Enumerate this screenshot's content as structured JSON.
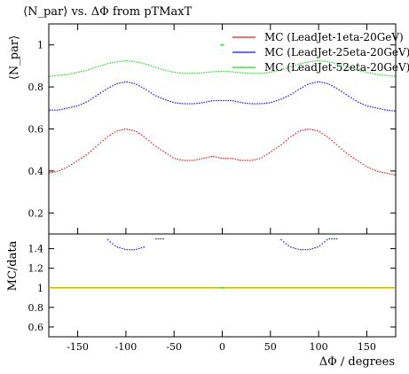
{
  "chart_data": [
    {
      "type": "line",
      "title": "⟨N_par⟩ vs. ΔΦ from pTMaxT",
      "ylabel": "⟨N_par⟩",
      "xlim": [
        -180,
        180
      ],
      "ylim": [
        0.1,
        1.1
      ],
      "yticks": [
        "0.2",
        "0.4",
        "0.6",
        "0.8",
        "1"
      ],
      "legend_position": "top-right",
      "grid": false,
      "step_style": "histogram-steps",
      "series": [
        {
          "name": "MC (LeadJet-1eta-20GeV)",
          "color": "#e0201b",
          "x": [
            -180,
            -170,
            -160,
            -150,
            -140,
            -130,
            -120,
            -110,
            -100,
            -90,
            -80,
            -70,
            -60,
            -50,
            -40,
            -30,
            -20,
            -10,
            0,
            10,
            20,
            30,
            40,
            50,
            60,
            70,
            80,
            90,
            100,
            110,
            120,
            130,
            140,
            150,
            160,
            170,
            180
          ],
          "y": [
            0.39,
            0.4,
            0.42,
            0.45,
            0.48,
            0.52,
            0.56,
            0.59,
            0.6,
            0.59,
            0.56,
            0.52,
            0.49,
            0.46,
            0.45,
            0.45,
            0.46,
            0.47,
            0.46,
            0.46,
            0.45,
            0.45,
            0.46,
            0.49,
            0.52,
            0.56,
            0.59,
            0.6,
            0.59,
            0.56,
            0.52,
            0.48,
            0.45,
            0.42,
            0.4,
            0.39,
            0.38
          ]
        },
        {
          "name": "MC (LeadJet-25eta-20GeV)",
          "color": "#1515e0",
          "x": [
            -180,
            -170,
            -160,
            -150,
            -140,
            -130,
            -120,
            -110,
            -100,
            -90,
            -80,
            -70,
            -60,
            -50,
            -40,
            -30,
            -20,
            -10,
            0,
            10,
            20,
            30,
            40,
            50,
            60,
            70,
            80,
            90,
            100,
            110,
            120,
            130,
            140,
            150,
            160,
            170,
            180
          ],
          "y": [
            0.69,
            0.69,
            0.7,
            0.71,
            0.73,
            0.76,
            0.79,
            0.815,
            0.825,
            0.815,
            0.79,
            0.76,
            0.74,
            0.725,
            0.72,
            0.72,
            0.725,
            0.735,
            0.735,
            0.735,
            0.725,
            0.72,
            0.72,
            0.725,
            0.74,
            0.76,
            0.79,
            0.815,
            0.825,
            0.815,
            0.79,
            0.76,
            0.73,
            0.71,
            0.7,
            0.69,
            0.685
          ]
        },
        {
          "name": "MC (LeadJet-52eta-20GeV)",
          "color": "#2fd32f",
          "x": [
            -180,
            -170,
            -160,
            -150,
            -140,
            -130,
            -120,
            -110,
            -100,
            -90,
            -80,
            -70,
            -60,
            -50,
            -40,
            -30,
            -20,
            -10,
            0,
            10,
            20,
            30,
            40,
            50,
            60,
            70,
            80,
            90,
            100,
            110,
            120,
            130,
            140,
            150,
            160,
            170,
            180
          ],
          "y": [
            0.85,
            0.855,
            0.86,
            0.87,
            0.88,
            0.895,
            0.91,
            0.92,
            0.925,
            0.92,
            0.91,
            0.895,
            0.88,
            0.87,
            0.865,
            0.865,
            0.868,
            0.872,
            0.875,
            0.872,
            0.868,
            0.865,
            0.865,
            0.87,
            0.88,
            0.895,
            0.91,
            0.92,
            0.925,
            0.92,
            0.91,
            0.895,
            0.88,
            0.87,
            0.86,
            0.855,
            0.85
          ]
        }
      ],
      "markers": [
        {
          "x": 0,
          "y": 1.0,
          "color": "#2fd32f"
        }
      ]
    },
    {
      "type": "line",
      "ylabel": "MC/data",
      "xlabel": "ΔΦ / degrees",
      "xlim": [
        -180,
        180
      ],
      "ylim": [
        0.5,
        1.55
      ],
      "yticks": [
        "0.6",
        "0.8",
        "1",
        "1.2",
        "1.4"
      ],
      "xticks": [
        -150,
        -100,
        -50,
        0,
        50,
        100,
        150
      ],
      "xtick_labels": [
        "-150",
        "-100",
        "-50",
        "0",
        "50",
        "100",
        "150"
      ],
      "reference_line": {
        "y": 1.0,
        "color": "#c8b400"
      },
      "series": [
        {
          "name": "",
          "color": "#1515e0",
          "x": [
            -120,
            -110,
            -100,
            -90,
            -80
          ],
          "y": [
            1.5,
            1.42,
            1.39,
            1.39,
            1.42
          ]
        },
        {
          "name": "",
          "color": "#1515e0",
          "x": [
            -70,
            -60
          ],
          "y": [
            1.5,
            1.5
          ]
        },
        {
          "name": "",
          "color": "#1515e0",
          "x": [
            60,
            70,
            80,
            90,
            100,
            110,
            120
          ],
          "y": [
            1.5,
            1.42,
            1.39,
            1.39,
            1.42,
            1.5,
            1.5
          ]
        }
      ],
      "markers": [
        {
          "x": 0,
          "y": 1.0,
          "color": "#2fd32f"
        }
      ]
    }
  ]
}
